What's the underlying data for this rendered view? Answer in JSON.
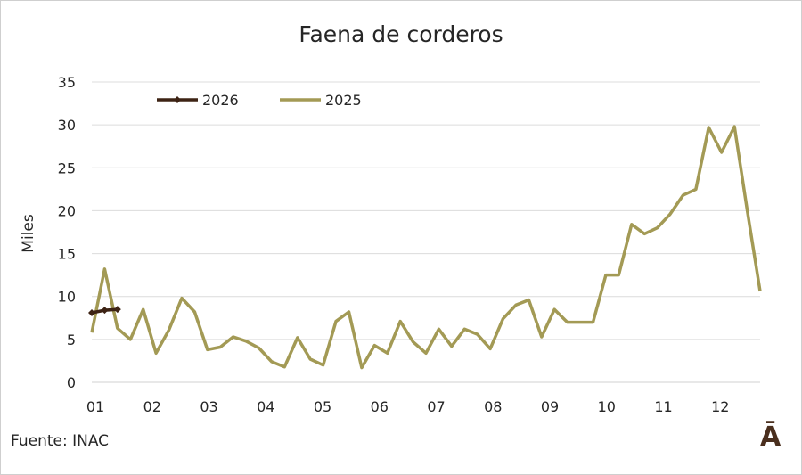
{
  "chart_data": {
    "type": "line",
    "title": "Faena de corderos",
    "xlabel": "",
    "ylabel": "Miles",
    "ylim": [
      0,
      35
    ],
    "yticks": [
      "0",
      "5",
      "10",
      "15",
      "20",
      "25",
      "30",
      "35"
    ],
    "month_labels": [
      "01",
      "02",
      "03",
      "04",
      "05",
      "06",
      "07",
      "08",
      "09",
      "10",
      "11",
      "12"
    ],
    "weeks_per_year": 53,
    "grid": true,
    "legend_position": "top-left",
    "series": [
      {
        "name": "2026",
        "color": "#3d2314",
        "marker": "diamond",
        "values": [
          8.1,
          8.4,
          8.5
        ]
      },
      {
        "name": "2025",
        "color": "#a39a55",
        "values": [
          5.8,
          13.2,
          6.3,
          5.0,
          8.5,
          3.4,
          6.1,
          9.8,
          8.2,
          3.8,
          4.1,
          5.3,
          4.8,
          4.0,
          2.4,
          1.8,
          5.2,
          2.7,
          2.0,
          7.1,
          8.2,
          1.7,
          4.3,
          3.4,
          7.1,
          4.7,
          3.4,
          6.2,
          4.2,
          6.2,
          5.6,
          3.9,
          7.4,
          9.0,
          9.6,
          5.3,
          8.5,
          7.0,
          7.0,
          7.0,
          12.5,
          12.5,
          18.4,
          17.3,
          18.0,
          19.6,
          21.8,
          22.5,
          29.7,
          26.8,
          29.8,
          20.0,
          10.6
        ]
      }
    ]
  },
  "source_text": "Fuente: INAC",
  "logo_text": "Ā"
}
